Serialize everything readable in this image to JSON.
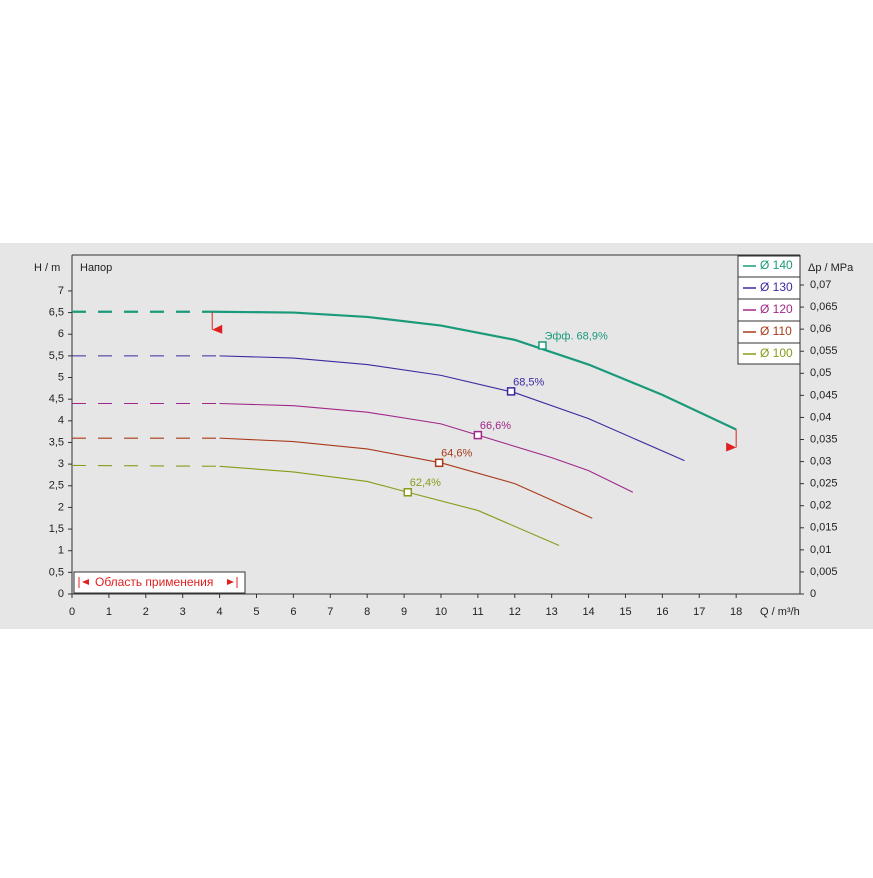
{
  "chart_data": {
    "type": "line",
    "title": "Напор",
    "x_label": "Q / m³/h",
    "y_label": "H / m",
    "y2_label": "Δp / MPa",
    "range_label": "Область применения",
    "xlim": [
      0,
      19.73
    ],
    "ylim": [
      0,
      7.83
    ],
    "y2lim": [
      0,
      0.0768
    ],
    "xticks": [
      0,
      1,
      2,
      3,
      4,
      5,
      6,
      7,
      8,
      9,
      10,
      11,
      12,
      13,
      14,
      15,
      16,
      17,
      18
    ],
    "yticks": [
      0,
      {
        "value": 0.5,
        "label": "0,5"
      },
      1,
      {
        "value": 1.5,
        "label": "1,5"
      },
      2,
      {
        "value": 2.5,
        "label": "2,5"
      },
      3,
      {
        "value": 3.5,
        "label": "3,5"
      },
      4,
      {
        "value": 4.5,
        "label": "4,5"
      },
      5,
      {
        "value": 5.5,
        "label": "5,5"
      },
      6,
      {
        "value": 6.5,
        "label": "6,5"
      },
      7
    ],
    "y2ticks": [
      0,
      {
        "value": 0.005,
        "label": "0,005"
      },
      {
        "value": 0.01,
        "label": "0,01"
      },
      {
        "value": 0.015,
        "label": "0,015"
      },
      {
        "value": 0.02,
        "label": "0,02"
      },
      {
        "value": 0.025,
        "label": "0,025"
      },
      {
        "value": 0.03,
        "label": "0,03"
      },
      {
        "value": 0.035,
        "label": "0,035"
      },
      {
        "value": 0.04,
        "label": "0,04"
      },
      {
        "value": 0.045,
        "label": "0,045"
      },
      {
        "value": 0.05,
        "label": "0,05"
      },
      {
        "value": 0.055,
        "label": "0,055"
      },
      {
        "value": 0.06,
        "label": "0,06"
      },
      {
        "value": 0.065,
        "label": "0,065"
      },
      {
        "value": 0.07,
        "label": "0,07"
      }
    ],
    "series": [
      {
        "name": "Ø 140",
        "color": "#1a9a7a",
        "x": [
          0,
          3.8,
          6,
          8,
          10,
          12,
          14,
          16,
          18
        ],
        "values": [
          6.52,
          6.52,
          6.5,
          6.4,
          6.2,
          5.87,
          5.3,
          4.6,
          3.8
        ],
        "eff": {
          "x": 12.75,
          "h": 5.74,
          "value": 68.9,
          "label": "Эфф.  68,9%"
        }
      },
      {
        "name": "Ø 130",
        "color": "#3a2aa0",
        "x": [
          0,
          4,
          6,
          8,
          10,
          12,
          14,
          16.6
        ],
        "values": [
          5.5,
          5.5,
          5.45,
          5.3,
          5.05,
          4.65,
          4.05,
          3.08
        ],
        "eff": {
          "x": 11.9,
          "h": 4.68,
          "value": 68.5,
          "label": "68,5%"
        }
      },
      {
        "name": "Ø 120",
        "color": "#a0288a",
        "x": [
          0,
          4,
          6,
          8,
          10,
          11,
          13,
          14,
          15.2
        ],
        "values": [
          4.4,
          4.4,
          4.35,
          4.2,
          3.93,
          3.67,
          3.15,
          2.85,
          2.35
        ],
        "eff": {
          "x": 11.0,
          "h": 3.67,
          "value": 66.6,
          "label": "66,6%"
        }
      },
      {
        "name": "Ø 110",
        "color": "#a83a1a",
        "x": [
          0,
          4,
          6,
          8,
          10,
          12,
          14.1
        ],
        "values": [
          3.6,
          3.6,
          3.52,
          3.35,
          3.03,
          2.55,
          1.75
        ],
        "eff": {
          "x": 9.95,
          "h": 3.03,
          "value": 64.6,
          "label": "64,6%"
        }
      },
      {
        "name": "Ø 100",
        "color": "#8a9a1a",
        "x": [
          0,
          4,
          6,
          8,
          9.1,
          11,
          13.2
        ],
        "values": [
          2.97,
          2.95,
          2.82,
          2.6,
          2.35,
          1.93,
          1.12
        ],
        "eff": {
          "x": 9.1,
          "h": 2.35,
          "value": 62.4,
          "label": "62,4%"
        }
      }
    ]
  }
}
